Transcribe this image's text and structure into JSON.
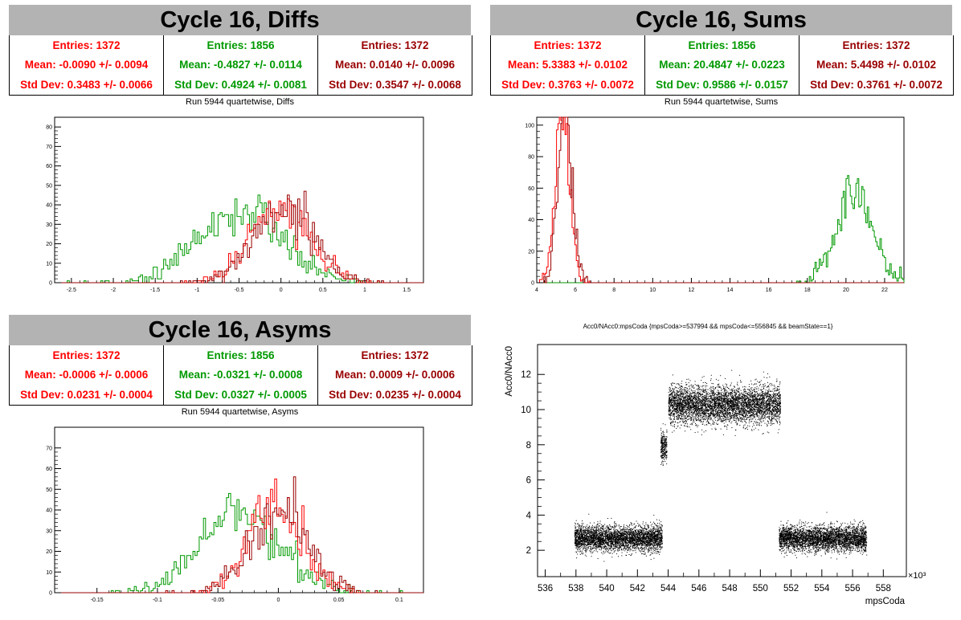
{
  "panels": {
    "diffs": {
      "title": "Cycle 16, Diffs",
      "subtitle": "Run 5944 quartetwise, Diffs",
      "stats": [
        {
          "entries": "Entries: 1372",
          "mean": "Mean: -0.0090 +/- 0.0094",
          "std": "Std Dev: 0.3483 +/- 0.0066",
          "color": "#ff0000"
        },
        {
          "entries": "Entries: 1856",
          "mean": "Mean: -0.4827 +/- 0.0114",
          "std": "Std Dev: 0.4924 +/- 0.0081",
          "color": "#009900"
        },
        {
          "entries": "Entries: 1372",
          "mean": "Mean: 0.0140 +/- 0.0096",
          "std": "Std Dev: 0.3547 +/- 0.0068",
          "color": "#990000"
        }
      ]
    },
    "sums": {
      "title": "Cycle 16, Sums",
      "subtitle": "Run 5944 quartetwise, Sums",
      "stats": [
        {
          "entries": "Entries: 1372",
          "mean": "Mean: 5.3383 +/- 0.0102",
          "std": "Std Dev: 0.3763 +/- 0.0072",
          "color": "#ff0000"
        },
        {
          "entries": "Entries: 1856",
          "mean": "Mean: 20.4847 +/- 0.0223",
          "std": "Std Dev: 0.9586 +/- 0.0157",
          "color": "#009900"
        },
        {
          "entries": "Entries: 1372",
          "mean": "Mean: 5.4498 +/- 0.0102",
          "std": "Std Dev: 0.3761 +/- 0.0072",
          "color": "#990000"
        }
      ]
    },
    "asyms": {
      "title": "Cycle 16, Asyms",
      "subtitle": "Run 5944 quartetwise, Asyms",
      "stats": [
        {
          "entries": "Entries: 1372",
          "mean": "Mean: -0.0006 +/- 0.0006",
          "std": "Std Dev: 0.0231 +/- 0.0004",
          "color": "#ff0000"
        },
        {
          "entries": "Entries: 1856",
          "mean": "Mean: -0.0321 +/- 0.0008",
          "std": "Std Dev: 0.0327 +/- 0.0005",
          "color": "#009900"
        },
        {
          "entries": "Entries: 1372",
          "mean": "Mean: 0.0009 +/- 0.0006",
          "std": "Std Dev: 0.0235 +/- 0.0004",
          "color": "#990000"
        }
      ]
    }
  },
  "chart_data": [
    {
      "id": "diffs",
      "type": "histogram",
      "xlim": [
        -2.7,
        1.7
      ],
      "ylim": [
        0,
        85
      ],
      "xticks": [
        -2.5,
        -2,
        -1.5,
        -1,
        -0.5,
        0,
        0.5,
        1,
        1.5
      ],
      "xtick_labels": [
        "-2.5",
        "-2",
        "-1.5",
        "-1",
        "-0.5",
        "0",
        "0.5",
        "1",
        "1.5"
      ],
      "yticks": [
        0,
        10,
        20,
        30,
        40,
        50,
        60,
        70,
        80
      ],
      "series": [
        {
          "color": "#009900",
          "entries": 1856,
          "mean": -0.4827,
          "std": 0.4924
        },
        {
          "color": "#ff0000",
          "entries": 1372,
          "mean": -0.009,
          "std": 0.3483
        },
        {
          "color": "#990000",
          "entries": 1372,
          "mean": 0.014,
          "std": 0.3547
        }
      ]
    },
    {
      "id": "sums",
      "type": "histogram",
      "xlim": [
        4,
        23
      ],
      "ylim": [
        0,
        105
      ],
      "xticks": [
        4,
        6,
        8,
        10,
        12,
        14,
        16,
        18,
        20,
        22
      ],
      "xtick_labels": [
        "4",
        "6",
        "8",
        "10",
        "12",
        "14",
        "16",
        "18",
        "20",
        "22"
      ],
      "yticks": [
        0,
        20,
        40,
        60,
        80,
        100
      ],
      "series": [
        {
          "color": "#009900",
          "entries": 1856,
          "mean": 20.4847,
          "std": 0.9586
        },
        {
          "color": "#ff0000",
          "entries": 1372,
          "mean": 5.3383,
          "std": 0.3763
        },
        {
          "color": "#990000",
          "entries": 1372,
          "mean": 5.4498,
          "std": 0.3761
        }
      ]
    },
    {
      "id": "asyms",
      "type": "histogram",
      "xlim": [
        -0.185,
        0.12
      ],
      "ylim": [
        0,
        80
      ],
      "xticks": [
        -0.15,
        -0.1,
        -0.05,
        0,
        0.05,
        0.1
      ],
      "xtick_labels": [
        "-0.15",
        "-0.1",
        "-0.05",
        "0",
        "0.05",
        "0.1"
      ],
      "yticks": [
        0,
        10,
        20,
        30,
        40,
        50,
        60,
        70
      ],
      "series": [
        {
          "color": "#009900",
          "entries": 1856,
          "mean": -0.0321,
          "std": 0.0327
        },
        {
          "color": "#ff0000",
          "entries": 1372,
          "mean": -0.0006,
          "std": 0.0231
        },
        {
          "color": "#990000",
          "entries": 1372,
          "mean": 0.0009,
          "std": 0.0235
        }
      ]
    },
    {
      "id": "scatter",
      "type": "scatter",
      "title": "Acc0/NAcc0:mpsCoda {mpsCoda>=537994 && mpsCoda<=556845 && beamState==1}",
      "xlabel": "mpsCoda",
      "ylabel": "Acc0/NAcc0",
      "xexp": "×10³",
      "xlim": [
        535.5,
        559.5
      ],
      "ylim": [
        0.5,
        13.7
      ],
      "xticks": [
        536,
        538,
        540,
        542,
        544,
        546,
        548,
        550,
        552,
        554,
        556,
        558
      ],
      "xtick_labels": [
        "536",
        "538",
        "540",
        "542",
        "544",
        "546",
        "548",
        "550",
        "552",
        "554",
        "556",
        "558"
      ],
      "yticks": [
        2,
        4,
        6,
        8,
        10,
        12
      ],
      "ytick_labels": [
        "2",
        "4",
        "6",
        "8",
        "10",
        "12"
      ],
      "clusters": [
        {
          "x": [
            537.9,
            543.6
          ],
          "y_center": 2.7,
          "y_spread": 0.35
        },
        {
          "x": [
            543.5,
            543.9
          ],
          "y_center": 7.9,
          "y_spread": 0.45
        },
        {
          "x": [
            544.0,
            551.3
          ],
          "y_center": 10.3,
          "y_spread": 0.55
        },
        {
          "x": [
            551.2,
            556.9
          ],
          "y_center": 2.7,
          "y_spread": 0.35
        }
      ]
    }
  ]
}
